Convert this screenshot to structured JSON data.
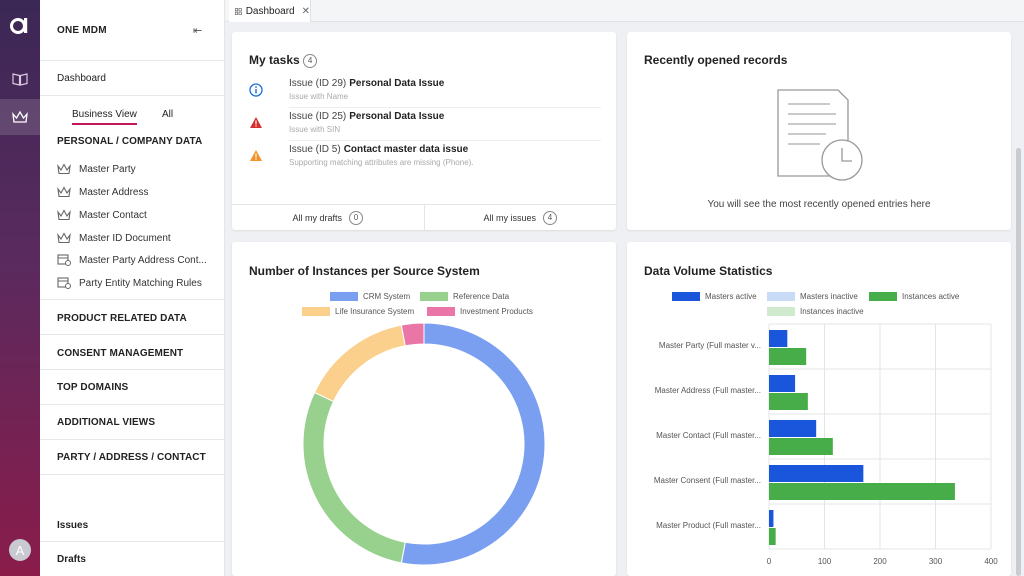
{
  "app": {
    "title": "ONE MDM"
  },
  "colors": {
    "rail_top": "#3b2855",
    "rail_bottom": "#8a1c4a",
    "accent": "#c2185b"
  },
  "rail": {
    "avatar": "A"
  },
  "sidebar": {
    "dashboard": "Dashboard",
    "views": [
      "Business View",
      "All"
    ],
    "sections": [
      {
        "title": "PERSONAL / COMPANY DATA",
        "items": [
          "Master Party",
          "Master Address",
          "Master Contact",
          "Master ID Document",
          "Master Party Address Cont...",
          "Party Entity Matching Rules"
        ]
      },
      {
        "title": "PRODUCT RELATED DATA"
      },
      {
        "title": "CONSENT MANAGEMENT"
      },
      {
        "title": "TOP DOMAINS"
      },
      {
        "title": "ADDITIONAL VIEWS"
      },
      {
        "title": "PARTY / ADDRESS / CONTACT"
      }
    ],
    "bottom": [
      "Issues",
      "Drafts"
    ]
  },
  "tabs": [
    {
      "label": "Dashboard",
      "close": "✕"
    }
  ],
  "tasks": {
    "title": "My tasks",
    "count": "4",
    "items": [
      {
        "id": "Issue (ID 29)",
        "title": "Personal Data Issue",
        "desc": "Issue with Name",
        "icon": "info-icon"
      },
      {
        "id": "Issue (ID 25)",
        "title": "Personal Data Issue",
        "desc": "Issue with SIN",
        "icon": "error-icon"
      },
      {
        "id": "Issue (ID 5)",
        "title": "Contact master data issue",
        "desc": "Supporting matching attributes are missing (Phone).",
        "icon": "warning-icon"
      }
    ],
    "drafts_label": "All my drafts",
    "drafts_count": "0",
    "issues_label": "All my issues",
    "issues_count": "4"
  },
  "recent": {
    "title": "Recently opened records",
    "empty": "You will see the most recently opened entries here"
  },
  "donut": {
    "title": "Number of Instances per Source System"
  },
  "volume": {
    "title": "Data Volume Statistics"
  },
  "chart_data": [
    {
      "type": "pie",
      "title": "Number of Instances per Source System",
      "labels": [
        "CRM System",
        "Reference Data",
        "Life Insurance System",
        "Investment Products"
      ],
      "values": [
        53,
        29,
        15,
        3
      ],
      "colors": [
        "#7b9ff0",
        "#98d08e",
        "#fbd08c",
        "#ea76a8"
      ],
      "legend": "top"
    },
    {
      "type": "bar",
      "orientation": "horizontal",
      "title": "Data Volume Statistics",
      "categories": [
        "Master Party (Full master v...",
        "Master Address (Full master...",
        "Master Contact (Full master...",
        "Master Consent (Full master...",
        "Master Product (Full master..."
      ],
      "series": [
        {
          "name": "Masters active",
          "color": "#1a56db",
          "values": [
            33,
            47,
            85,
            170,
            8
          ]
        },
        {
          "name": "Masters inactive",
          "color": "#c9dcf7",
          "values": [
            0,
            0,
            0,
            0,
            0
          ]
        },
        {
          "name": "Instances active",
          "color": "#47ad48",
          "values": [
            67,
            70,
            115,
            335,
            12
          ]
        },
        {
          "name": "Instances inactive",
          "color": "#cfeacd",
          "values": [
            0,
            0,
            0,
            0,
            0
          ]
        }
      ],
      "xlim": [
        0,
        400
      ],
      "xticks": [
        0,
        100,
        200,
        300,
        400
      ],
      "legend": "top"
    }
  ]
}
